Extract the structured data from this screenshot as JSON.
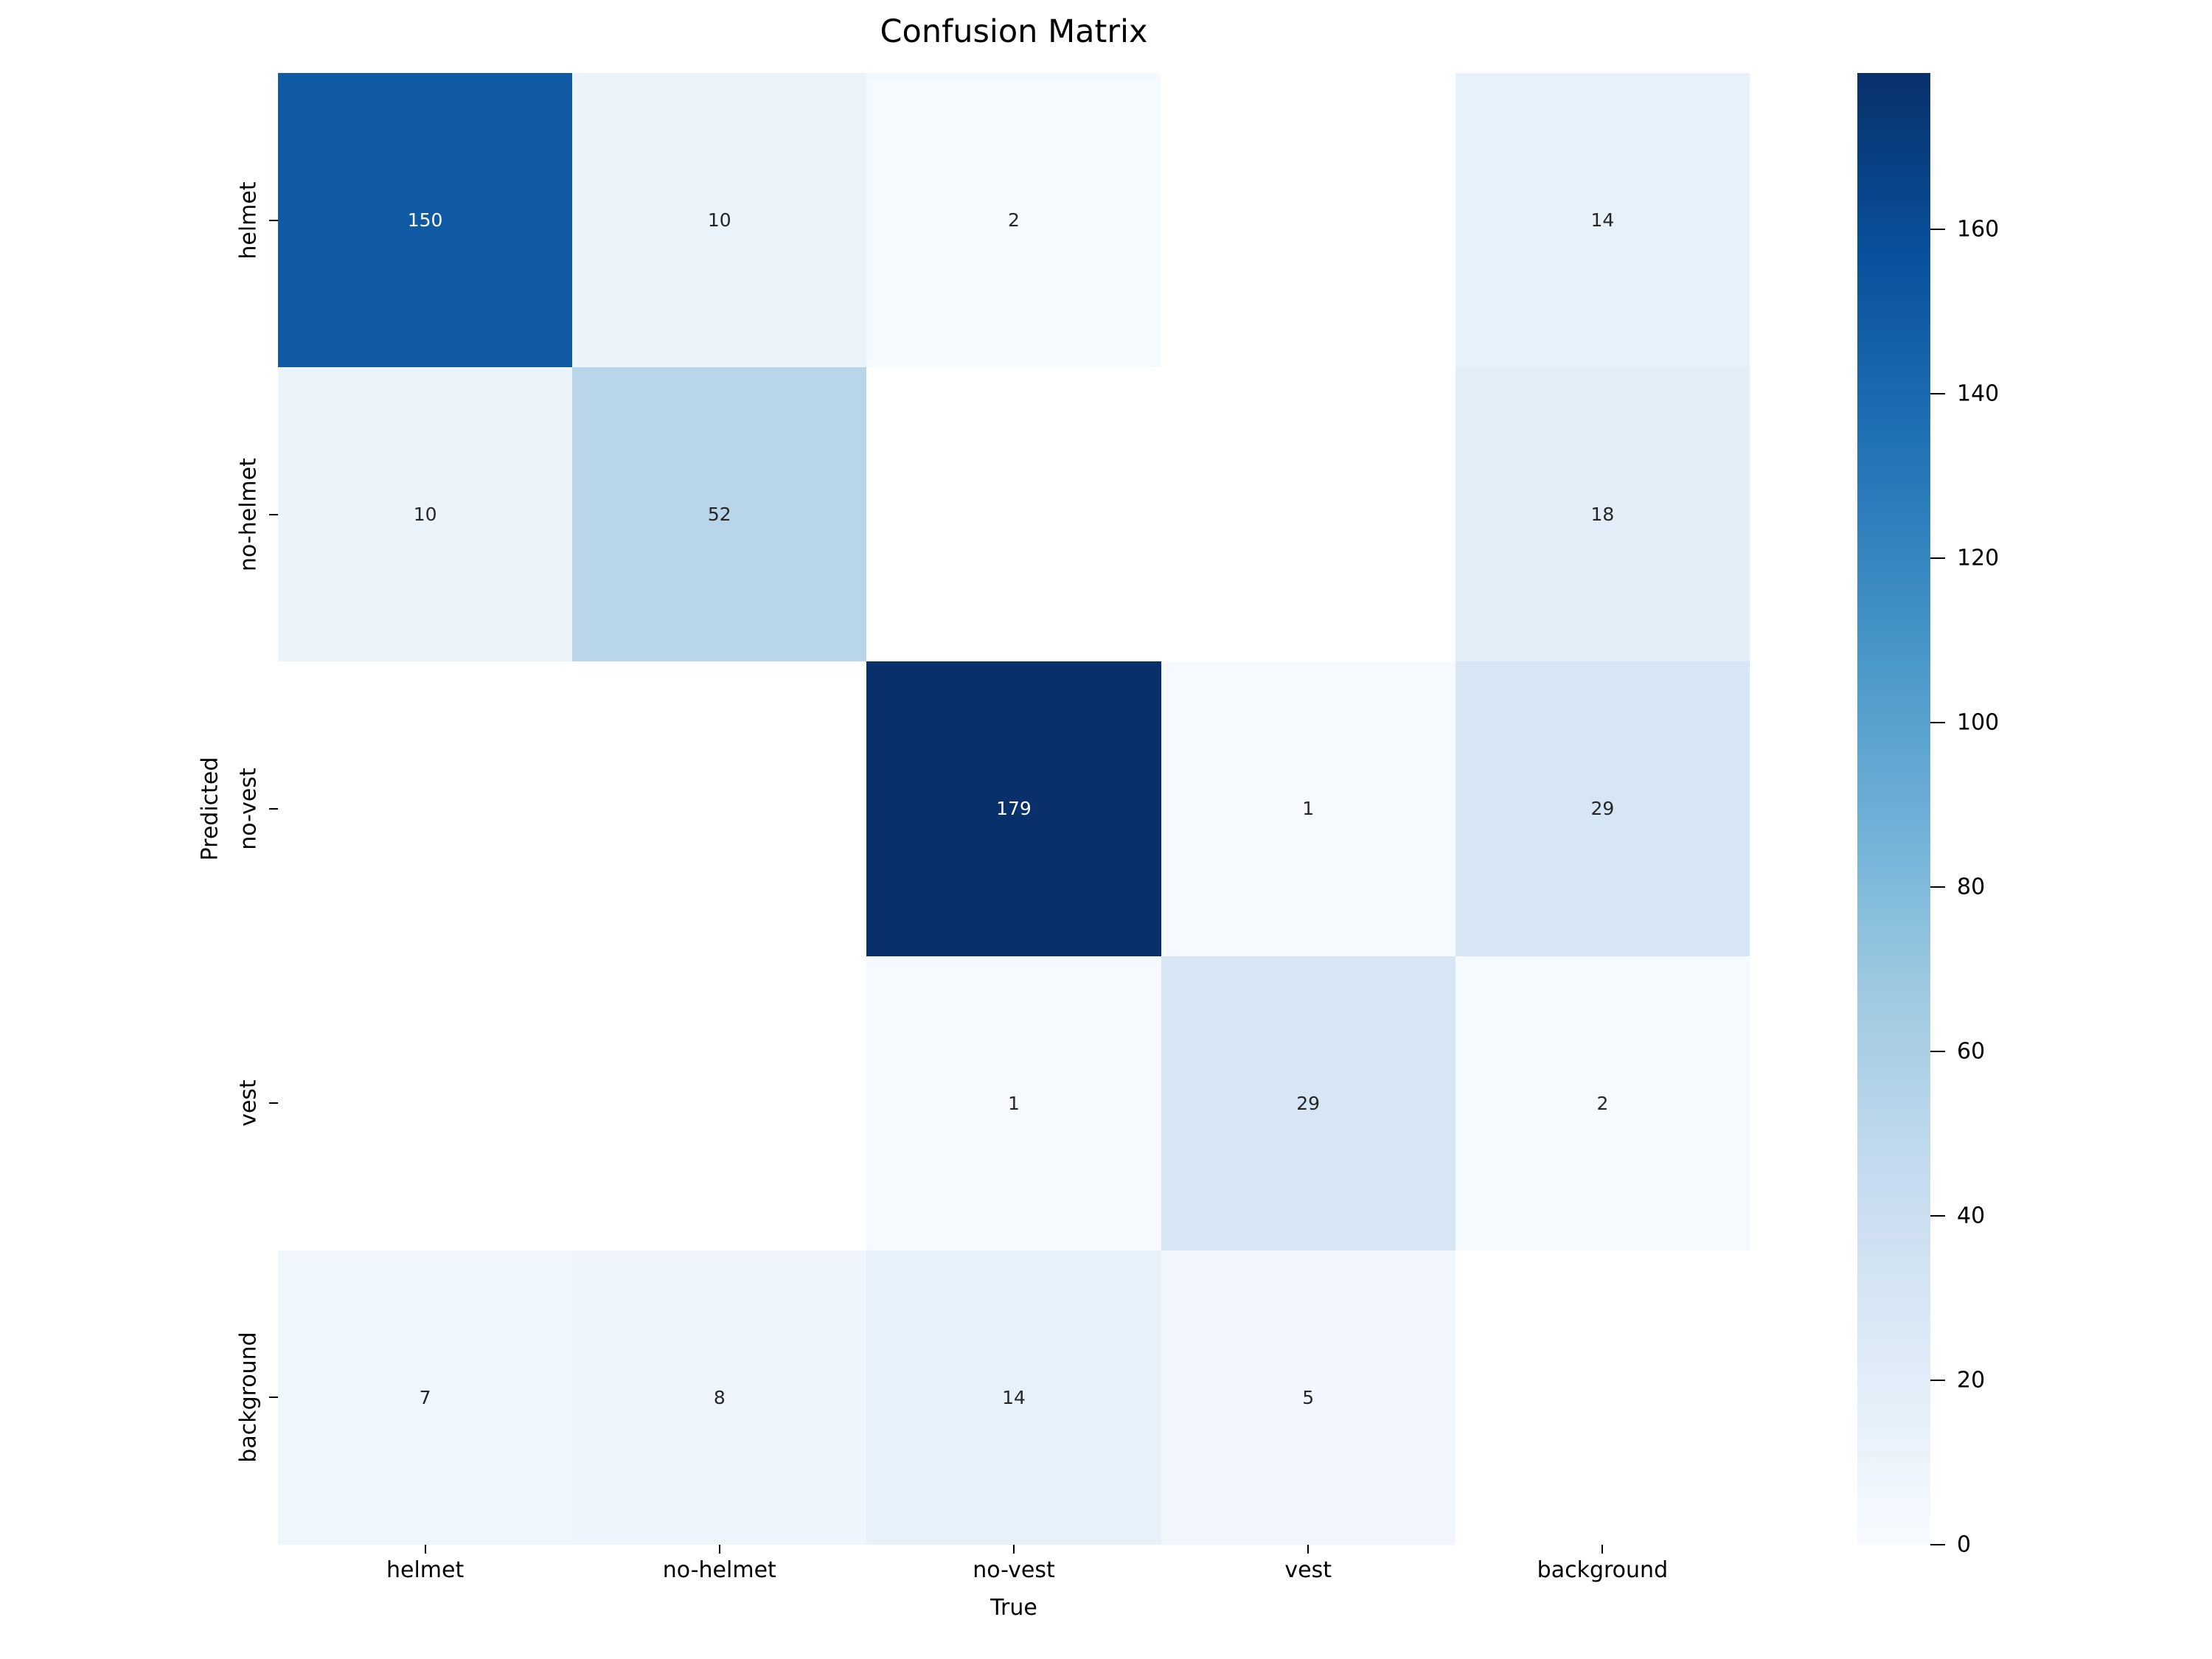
{
  "chart_data": {
    "type": "heatmap",
    "title": "Confusion Matrix",
    "xlabel": "True",
    "ylabel": "Predicted",
    "x_categories": [
      "helmet",
      "no-helmet",
      "no-vest",
      "vest",
      "background"
    ],
    "y_categories": [
      "helmet",
      "no-helmet",
      "no-vest",
      "vest",
      "background"
    ],
    "values": [
      [
        150,
        10,
        2,
        null,
        14
      ],
      [
        10,
        52,
        null,
        null,
        18
      ],
      [
        null,
        null,
        179,
        1,
        29
      ],
      [
        null,
        null,
        1,
        29,
        2
      ],
      [
        7,
        8,
        14,
        5,
        null
      ]
    ],
    "vmin": 0,
    "vmax": 179,
    "empty_cell_color": "#ffffff",
    "annotation_color_light_bg": "#262626",
    "annotation_color_dark_bg": "#ffffff",
    "grid": false,
    "legend_position": "right-colorbar",
    "colorbar_ticks": [
      0,
      20,
      40,
      60,
      80,
      100,
      120,
      140,
      160
    ],
    "colormap": {
      "name": "Blues",
      "stops": [
        {
          "pos": 0.0,
          "color": "#f7fbff"
        },
        {
          "pos": 0.125,
          "color": "#deebf7"
        },
        {
          "pos": 0.25,
          "color": "#c6dbef"
        },
        {
          "pos": 0.375,
          "color": "#9ecae1"
        },
        {
          "pos": 0.5,
          "color": "#6baed6"
        },
        {
          "pos": 0.625,
          "color": "#4292c6"
        },
        {
          "pos": 0.75,
          "color": "#2171b5"
        },
        {
          "pos": 0.875,
          "color": "#08519c"
        },
        {
          "pos": 1.0,
          "color": "#08306b"
        }
      ]
    }
  }
}
